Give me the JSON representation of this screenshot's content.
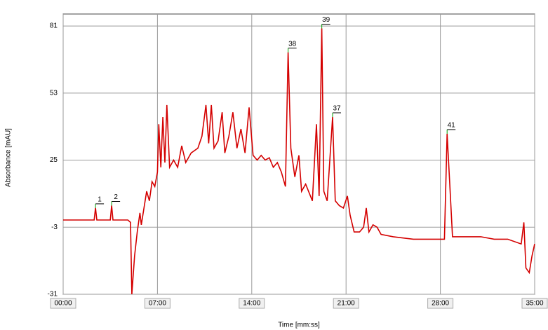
{
  "chart_data": {
    "type": "line",
    "y_label": "Absorbance [mAU]",
    "x_label": "Time [mm:ss]",
    "xlim": [
      0,
      35
    ],
    "ylim": [
      -31,
      86
    ],
    "xticks": [
      {
        "value": 0,
        "label": "00:00"
      },
      {
        "value": 7,
        "label": "07:00"
      },
      {
        "value": 14,
        "label": "14:00"
      },
      {
        "value": 21,
        "label": "21:00"
      },
      {
        "value": 28,
        "label": "28:00"
      },
      {
        "value": 35,
        "label": "35:00"
      }
    ],
    "yticks": [
      -31,
      -3,
      25,
      53,
      81
    ],
    "grid": true,
    "series": [
      {
        "color": "#d40000",
        "x": [
          0,
          2.3,
          2.4,
          2.5,
          3.5,
          3.6,
          3.7,
          4.8,
          5.0,
          5.1,
          5.3,
          5.5,
          5.7,
          5.8,
          6.0,
          6.2,
          6.4,
          6.6,
          6.8,
          7.0,
          7.1,
          7.25,
          7.4,
          7.55,
          7.7,
          7.9,
          8.2,
          8.5,
          8.8,
          9.1,
          9.5,
          10.0,
          10.3,
          10.6,
          10.8,
          11.0,
          11.2,
          11.5,
          11.8,
          12.0,
          12.3,
          12.6,
          12.9,
          13.2,
          13.5,
          13.8,
          14.1,
          14.4,
          14.7,
          15.0,
          15.3,
          15.6,
          15.9,
          16.2,
          16.5,
          16.7,
          16.9,
          17.2,
          17.5,
          17.7,
          18.0,
          18.5,
          18.8,
          19.0,
          19.2,
          19.35,
          19.6,
          20.0,
          20.2,
          20.5,
          20.8,
          21.1,
          21.3,
          21.6,
          22.0,
          22.3,
          22.5,
          22.7,
          23.0,
          23.3,
          23.6,
          24.5,
          26.0,
          27.5,
          28.3,
          28.5,
          28.7,
          28.9,
          29.5,
          31.0,
          32.0,
          33.0,
          34.0,
          34.2,
          34.35,
          34.6,
          34.8,
          35
        ],
        "values": [
          0,
          0,
          5,
          0,
          0,
          6,
          0,
          0,
          -1,
          -31,
          -15,
          -5,
          3,
          -2,
          5,
          12,
          8,
          16,
          14,
          20,
          40,
          22,
          43,
          24,
          48,
          22,
          25,
          22,
          31,
          24,
          28,
          30,
          35,
          48,
          32,
          48,
          30,
          33,
          45,
          28,
          35,
          45,
          30,
          38,
          28,
          47,
          27,
          25,
          27,
          25,
          26,
          22,
          24,
          20,
          14,
          70,
          30,
          18,
          27,
          12,
          15,
          8,
          40,
          10,
          80,
          12,
          8,
          43,
          8,
          6,
          5,
          10,
          2,
          -5,
          -5,
          -3,
          5,
          -5,
          -2,
          -3,
          -6,
          -7,
          -8,
          -8,
          -8,
          36,
          15,
          -7,
          -7,
          -7,
          -8,
          -8,
          -10,
          -1,
          -20,
          -22,
          -15,
          -10
        ]
      }
    ],
    "peaks": [
      {
        "label": "1",
        "x": 2.4,
        "y": 5
      },
      {
        "label": "2",
        "x": 3.6,
        "y": 6
      },
      {
        "label": "38",
        "x": 16.7,
        "y": 70
      },
      {
        "label": "39",
        "x": 19.2,
        "y": 80
      },
      {
        "label": "37",
        "x": 20.0,
        "y": 43
      },
      {
        "label": "41",
        "x": 28.5,
        "y": 36
      }
    ]
  }
}
